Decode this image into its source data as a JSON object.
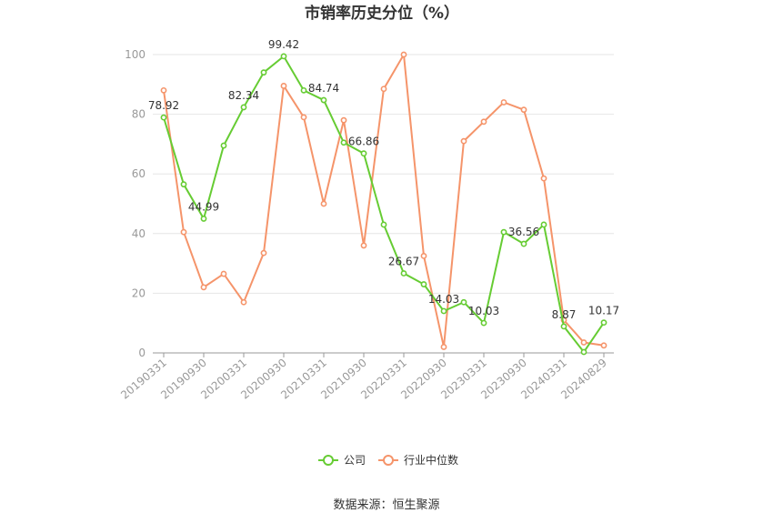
{
  "chart_data": {
    "type": "line",
    "title": "市销率历史分位（%）",
    "xlabel": "",
    "ylabel": "",
    "ylim": [
      0,
      100
    ],
    "yticks": [
      0,
      20,
      40,
      60,
      80,
      100
    ],
    "x": [
      "20190331",
      "20190630",
      "20190930",
      "20191231",
      "20200331",
      "20200630",
      "20200930",
      "20201231",
      "20210331",
      "20210630",
      "20210930",
      "20211231",
      "20220331",
      "20220630",
      "20220930",
      "20221231",
      "20230331",
      "20230630",
      "20230930",
      "20231231",
      "20240331",
      "20240630",
      "20240829"
    ],
    "xtick_labels": [
      "20190331",
      "20190930",
      "20200331",
      "20200930",
      "20210331",
      "20210930",
      "20220331",
      "20220930",
      "20230331",
      "20230930",
      "20240331",
      "20240829"
    ],
    "grid": true,
    "legend_position": "bottom",
    "series": [
      {
        "name": "公司",
        "color": "#66cc33",
        "values": [
          78.92,
          56.5,
          44.99,
          69.5,
          82.34,
          94.0,
          99.42,
          88.0,
          84.74,
          70.5,
          66.86,
          43.0,
          26.67,
          23.0,
          14.03,
          17.0,
          10.03,
          40.5,
          36.56,
          43.0,
          8.87,
          0.3,
          10.17
        ],
        "labels": {
          "0": "78.92",
          "2": "44.99",
          "4": "82.34",
          "6": "99.42",
          "8": "84.74",
          "10": "66.86",
          "12": "26.67",
          "14": "14.03",
          "16": "10.03",
          "18": "36.56",
          "20": "8.87",
          "22": "10.17"
        }
      },
      {
        "name": "行业中位数",
        "color": "#f5946a",
        "values": [
          88.0,
          40.5,
          22.0,
          26.5,
          17.0,
          33.5,
          89.5,
          79.0,
          50.0,
          78.0,
          36.0,
          88.5,
          100.0,
          32.5,
          2.0,
          71.0,
          77.5,
          84.0,
          81.5,
          58.5,
          11.0,
          3.5,
          2.5
        ]
      }
    ]
  },
  "source_text": "数据来源：恒生聚源"
}
